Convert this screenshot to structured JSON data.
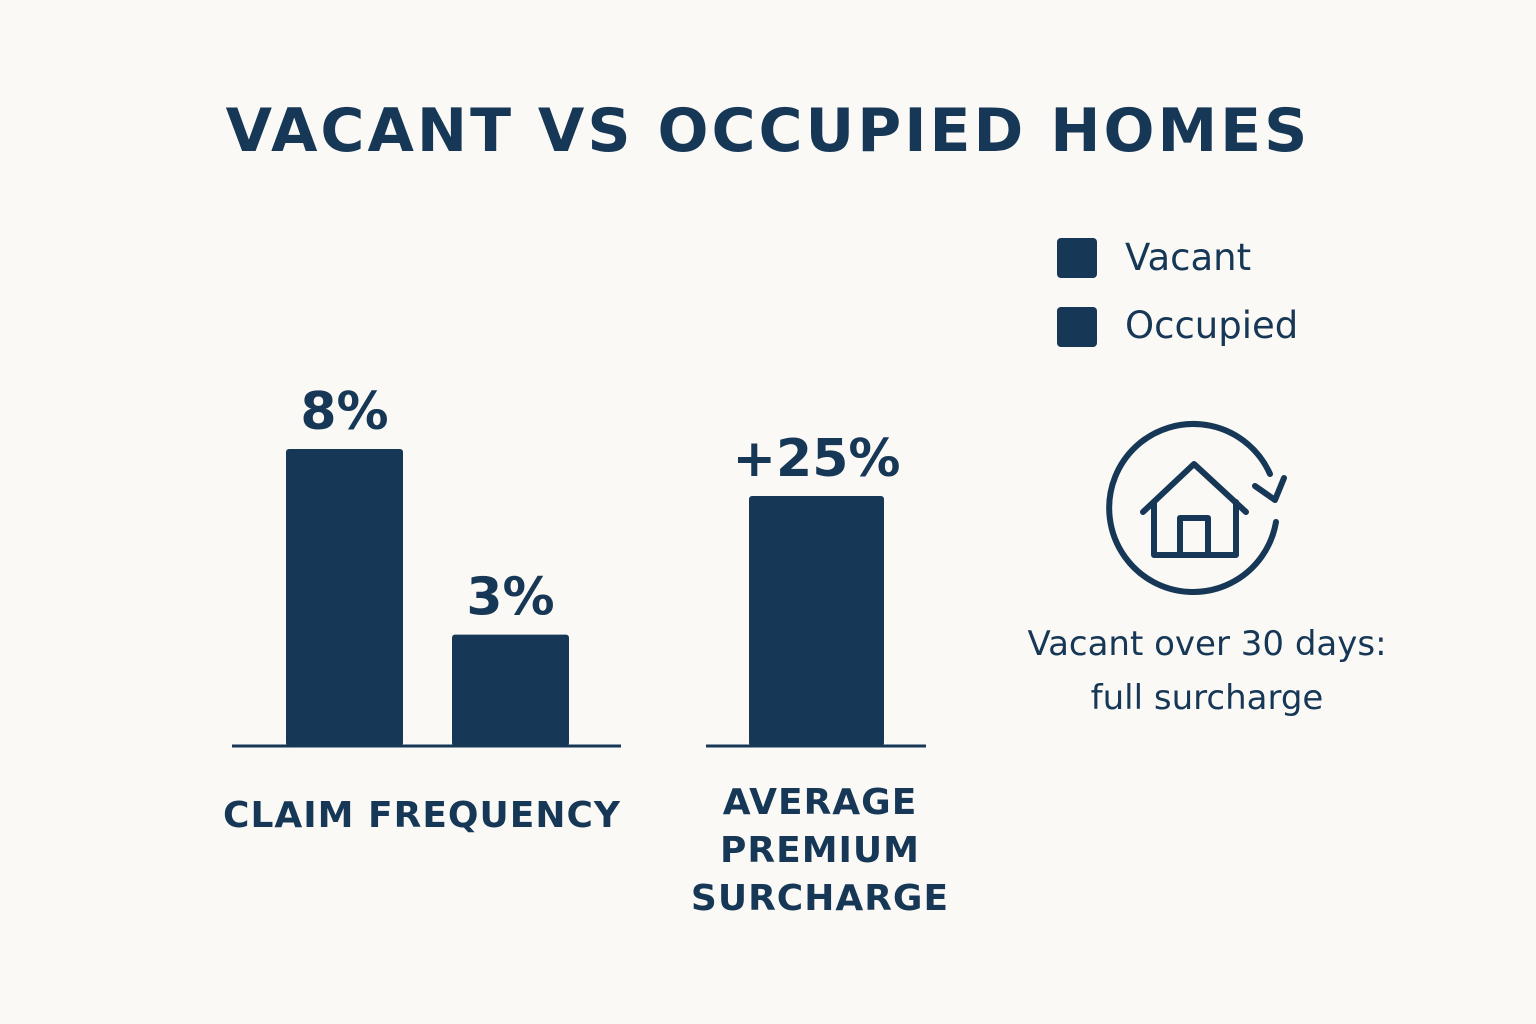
{
  "title": "VACANT VS OCCUPIED HOMES",
  "legend": [
    {
      "label": "Vacant",
      "color": "#163755"
    },
    {
      "label": "Occupied",
      "color": "#163755"
    }
  ],
  "chart_data": [
    {
      "type": "bar",
      "title": "CLAIM FREQUENCY",
      "categories": [
        "Vacant",
        "Occupied"
      ],
      "values": [
        8,
        3
      ],
      "labels": [
        "8%",
        "3%"
      ],
      "unit": "%"
    },
    {
      "type": "bar",
      "title": "AVERAGE PREMIUM SURCHARGE",
      "categories": [
        "Vacant"
      ],
      "values": [
        25
      ],
      "labels": [
        "+25%"
      ],
      "unit": "%"
    }
  ],
  "categories_text": {
    "claim": "CLAIM FREQUENCY",
    "surcharge_lines": [
      "AVERAGE",
      "PREMIUM",
      "SURCHARGE"
    ]
  },
  "note": {
    "icon": "house-refresh-icon",
    "lines": [
      "Vacant over 30 days:",
      "full surcharge"
    ]
  },
  "colors": {
    "bar": "#163755",
    "background": "#faf9f6"
  }
}
